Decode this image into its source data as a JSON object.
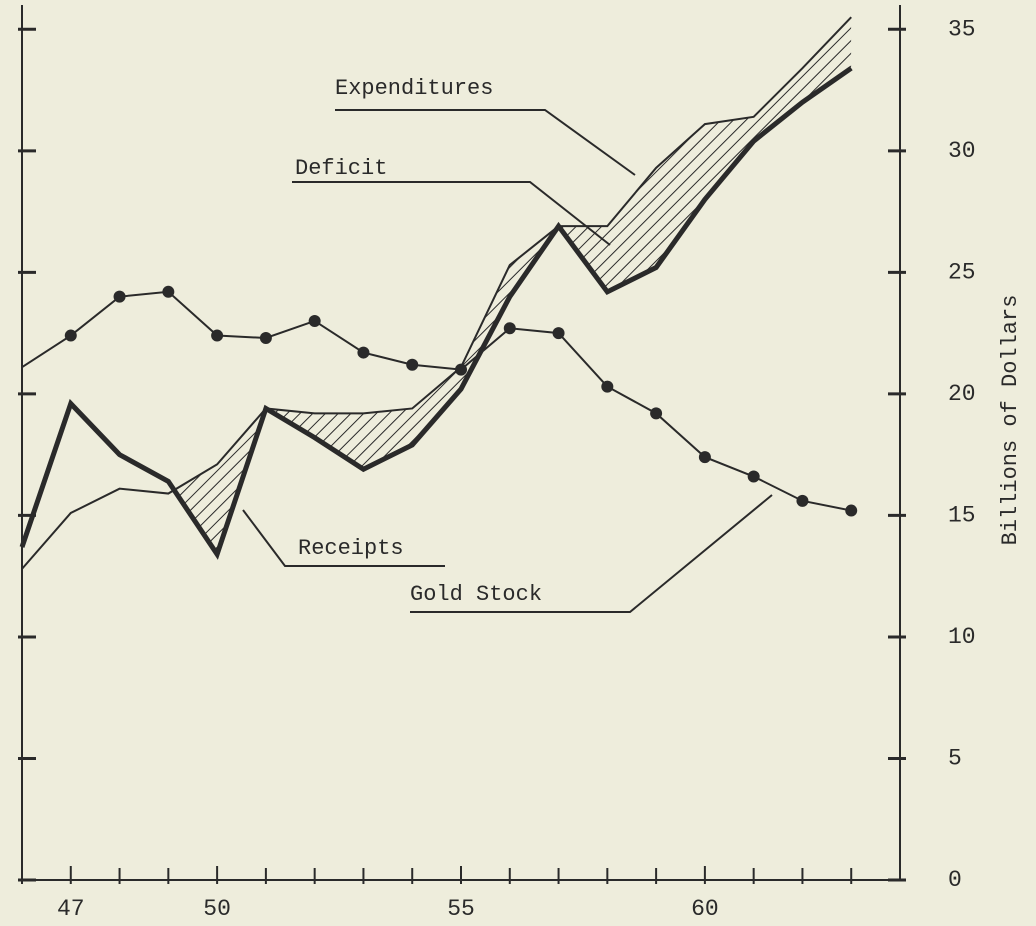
{
  "chart_data": {
    "type": "line",
    "y_axis_label": "Billions of Dollars",
    "annotations": [
      "Deficit"
    ],
    "x": [
      46,
      47,
      48,
      49,
      50,
      51,
      52,
      53,
      54,
      55,
      56,
      57,
      58,
      59,
      60,
      61,
      62,
      63
    ],
    "series": [
      {
        "name": "Expenditures",
        "color": "#2a2a2a",
        "values": [
          12.8,
          15.1,
          16.1,
          15.9,
          17.1,
          19.4,
          19.2,
          19.2,
          19.4,
          21.1,
          25.3,
          26.9,
          26.9,
          29.3,
          31.1,
          31.4,
          33.4,
          35.5
        ]
      },
      {
        "name": "Receipts",
        "color": "#2a2a2a",
        "values": [
          13.7,
          19.6,
          17.5,
          16.4,
          13.4,
          19.4,
          18.2,
          16.9,
          17.9,
          20.2,
          24.0,
          26.9,
          24.2,
          25.2,
          28.0,
          30.4,
          32.0,
          33.4
        ]
      },
      {
        "name": "Gold Stock",
        "color": "#2a2a2a",
        "values": [
          21.1,
          22.4,
          24.0,
          24.2,
          22.4,
          22.3,
          23.0,
          21.7,
          21.2,
          21.0,
          22.7,
          22.5,
          20.3,
          19.2,
          17.4,
          16.6,
          15.6,
          15.2
        ]
      }
    ],
    "deficit_hatched": true,
    "xlim": [
      46,
      64
    ],
    "xticks": [
      47,
      50,
      55,
      60
    ],
    "xminorticks": [
      46,
      48,
      49,
      51,
      52,
      53,
      54,
      56,
      57,
      58,
      59,
      61,
      62,
      63
    ],
    "ylim": [
      0,
      36
    ],
    "yticks": [
      0,
      5,
      10,
      15,
      20,
      25,
      30,
      35
    ]
  }
}
